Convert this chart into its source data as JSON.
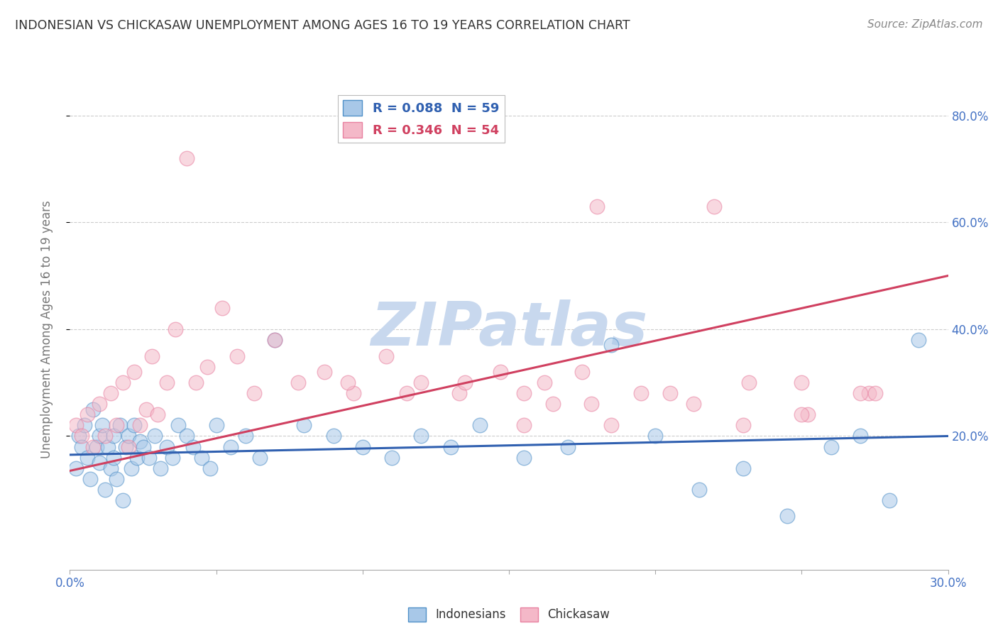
{
  "title": "INDONESIAN VS CHICKASAW UNEMPLOYMENT AMONG AGES 16 TO 19 YEARS CORRELATION CHART",
  "source": "Source: ZipAtlas.com",
  "ylabel": "Unemployment Among Ages 16 to 19 years",
  "xlim": [
    0.0,
    0.3
  ],
  "ylim": [
    -0.05,
    0.85
  ],
  "yticks": [
    0.2,
    0.4,
    0.6,
    0.8
  ],
  "ytick_labels": [
    "20.0%",
    "40.0%",
    "60.0%",
    "80.0%"
  ],
  "xticks": [
    0.0,
    0.05,
    0.1,
    0.15,
    0.2,
    0.25,
    0.3
  ],
  "xtick_labels": [
    "0.0%",
    "",
    "",
    "",
    "",
    "",
    "30.0%"
  ],
  "legend_entry1": "R = 0.088  N = 59",
  "legend_entry2": "R = 0.346  N = 54",
  "color_indonesian": "#a8c8e8",
  "color_chickasaw": "#f4b8c8",
  "color_indonesian_edge": "#5090c8",
  "color_chickasaw_edge": "#e880a0",
  "color_indonesian_line": "#3060b0",
  "color_chickasaw_line": "#d04060",
  "watermark": "ZIPatlas",
  "indonesian_x": [
    0.002,
    0.003,
    0.004,
    0.005,
    0.006,
    0.007,
    0.008,
    0.009,
    0.01,
    0.01,
    0.011,
    0.012,
    0.013,
    0.014,
    0.015,
    0.015,
    0.016,
    0.017,
    0.018,
    0.019,
    0.02,
    0.021,
    0.022,
    0.023,
    0.024,
    0.025,
    0.027,
    0.029,
    0.031,
    0.033,
    0.035,
    0.037,
    0.04,
    0.042,
    0.045,
    0.048,
    0.05,
    0.055,
    0.06,
    0.065,
    0.07,
    0.08,
    0.09,
    0.1,
    0.11,
    0.12,
    0.13,
    0.14,
    0.155,
    0.17,
    0.185,
    0.2,
    0.215,
    0.23,
    0.245,
    0.26,
    0.27,
    0.28,
    0.29
  ],
  "indonesian_y": [
    0.14,
    0.2,
    0.18,
    0.22,
    0.16,
    0.12,
    0.25,
    0.18,
    0.2,
    0.15,
    0.22,
    0.1,
    0.18,
    0.14,
    0.2,
    0.16,
    0.12,
    0.22,
    0.08,
    0.18,
    0.2,
    0.14,
    0.22,
    0.16,
    0.19,
    0.18,
    0.16,
    0.2,
    0.14,
    0.18,
    0.16,
    0.22,
    0.2,
    0.18,
    0.16,
    0.14,
    0.22,
    0.18,
    0.2,
    0.16,
    0.38,
    0.22,
    0.2,
    0.18,
    0.16,
    0.2,
    0.18,
    0.22,
    0.16,
    0.18,
    0.37,
    0.2,
    0.1,
    0.14,
    0.05,
    0.18,
    0.2,
    0.08,
    0.38
  ],
  "chickasaw_x": [
    0.002,
    0.004,
    0.006,
    0.008,
    0.01,
    0.012,
    0.014,
    0.016,
    0.018,
    0.02,
    0.022,
    0.024,
    0.026,
    0.028,
    0.03,
    0.033,
    0.036,
    0.04,
    0.043,
    0.047,
    0.052,
    0.057,
    0.063,
    0.07,
    0.078,
    0.087,
    0.097,
    0.108,
    0.12,
    0.133,
    0.147,
    0.162,
    0.178,
    0.195,
    0.213,
    0.232,
    0.252,
    0.273,
    0.18,
    0.22,
    0.095,
    0.115,
    0.135,
    0.155,
    0.175,
    0.25,
    0.27,
    0.155,
    0.165,
    0.275,
    0.25,
    0.23,
    0.205,
    0.185
  ],
  "chickasaw_y": [
    0.22,
    0.2,
    0.24,
    0.18,
    0.26,
    0.2,
    0.28,
    0.22,
    0.3,
    0.18,
    0.32,
    0.22,
    0.25,
    0.35,
    0.24,
    0.3,
    0.4,
    0.72,
    0.3,
    0.33,
    0.44,
    0.35,
    0.28,
    0.38,
    0.3,
    0.32,
    0.28,
    0.35,
    0.3,
    0.28,
    0.32,
    0.3,
    0.26,
    0.28,
    0.26,
    0.3,
    0.24,
    0.28,
    0.63,
    0.63,
    0.3,
    0.28,
    0.3,
    0.28,
    0.32,
    0.3,
    0.28,
    0.22,
    0.26,
    0.28,
    0.24,
    0.22,
    0.28,
    0.22
  ],
  "indonesian_trend_x": [
    0.0,
    0.3
  ],
  "indonesian_trend_y": [
    0.165,
    0.2
  ],
  "chickasaw_trend_x": [
    0.0,
    0.3
  ],
  "chickasaw_trend_y": [
    0.135,
    0.5
  ],
  "background_color": "#ffffff",
  "grid_color": "#cccccc",
  "title_color": "#333333",
  "axis_label_color": "#777777",
  "tick_label_color": "#4472c4",
  "watermark_color": "#c8d8ee",
  "source_color": "#888888"
}
